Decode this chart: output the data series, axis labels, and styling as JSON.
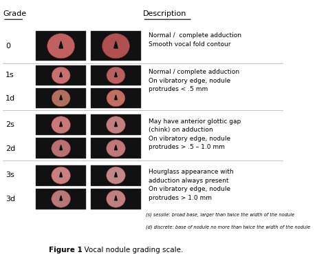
{
  "title": "Figure 1",
  "subtitle": "Vocal nodule grading scale.",
  "header_grade": "Grade",
  "header_description": "Description",
  "background_color": "#ffffff",
  "text_color": "#000000",
  "line_color": "#aaaaaa",
  "rows": [
    {
      "grade": "0",
      "description": "Normal /  complete adduction\nSmooth vocal fold contour",
      "num_image_rows": 1
    },
    {
      "grade": "1s/1d",
      "description": "Normal / complete adduction\nOn vibratory edge, nodule\nprotrudes < .5 mm",
      "num_image_rows": 2
    },
    {
      "grade": "2s/2d",
      "description": "May have anterior glottic gap\n(chink) on adduction\nOn vibratory edge, nodule\nprotrudes > .5 – 1.0 mm",
      "num_image_rows": 2
    },
    {
      "grade": "3s/3d",
      "description": "Hourglass appearance with\nadduction always present\nOn vibratory edge, nodule\nprotrudes > 1.0 mm",
      "num_image_rows": 2
    }
  ],
  "footnote_s": "(s) sessile: broad base, larger than twice the width of the nodule",
  "footnote_d": "(d) discrete: base of nodule no more than twice the width of the nodule",
  "image_bg_color": "#111111",
  "image_circle_colors": [
    [
      "#c06060",
      "#b05050"
    ],
    [
      "#c87070",
      "#b86060",
      "#b07060",
      "#c07060"
    ],
    [
      "#c87878",
      "#c08080",
      "#b87070",
      "#c07878"
    ],
    [
      "#c88080",
      "#c08888",
      "#b87878",
      "#c08080"
    ]
  ]
}
